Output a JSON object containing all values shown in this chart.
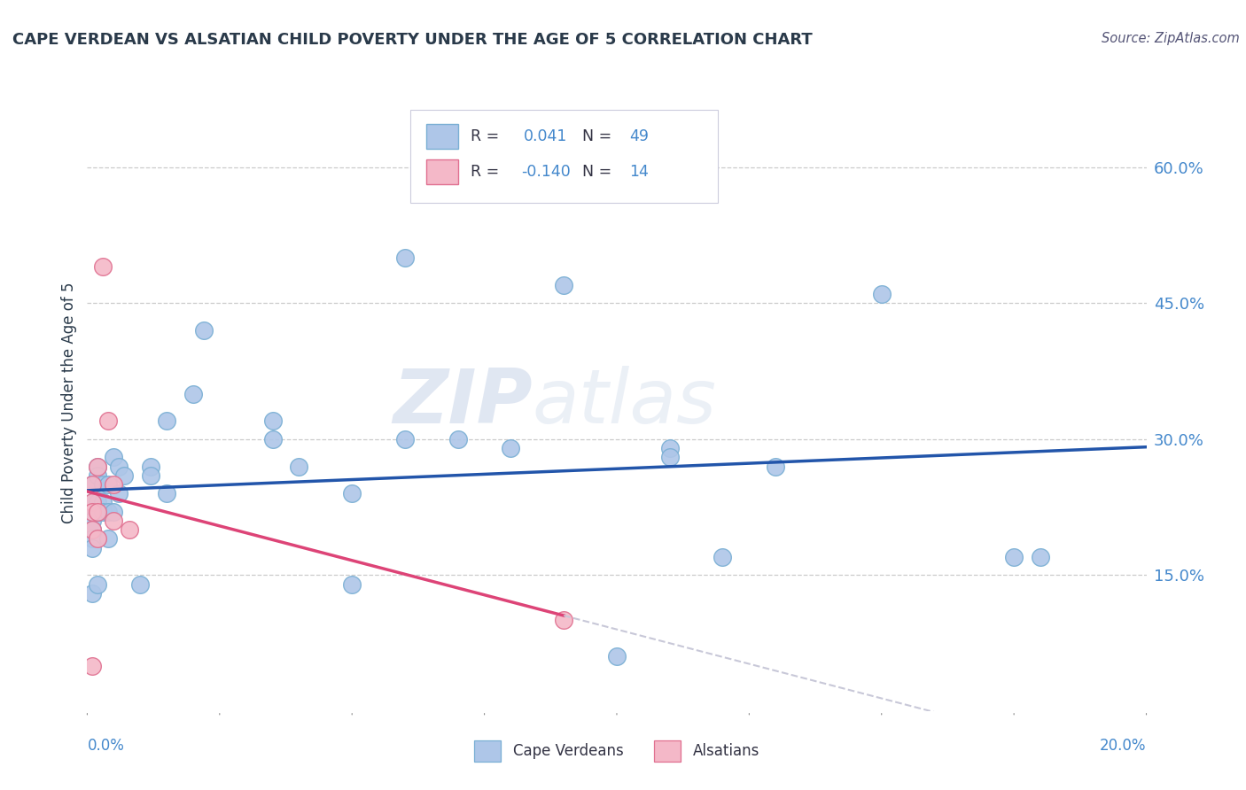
{
  "title": "CAPE VERDEAN VS ALSATIAN CHILD POVERTY UNDER THE AGE OF 5 CORRELATION CHART",
  "source": "Source: ZipAtlas.com",
  "ylabel": "Child Poverty Under the Age of 5",
  "ytick_labels": [
    "60.0%",
    "45.0%",
    "30.0%",
    "15.0%"
  ],
  "ytick_values": [
    0.6,
    0.45,
    0.3,
    0.15
  ],
  "xlim": [
    0.0,
    0.2
  ],
  "ylim": [
    0.0,
    0.68
  ],
  "watermark_1": "ZIP",
  "watermark_2": "atlas",
  "cv_color": "#aec6e8",
  "cv_edge_color": "#7aafd4",
  "als_color": "#f4b8c8",
  "als_edge_color": "#e07090",
  "trendline_cv_color": "#2255aa",
  "trendline_als_color": "#dd4477",
  "trendline_als_dash_color": "#c8c8d8",
  "grid_color": "#cccccc",
  "title_color": "#2a3a4a",
  "source_color": "#555577",
  "ylabel_color": "#2a3a4a",
  "tick_color": "#4488cc",
  "background_color": "#ffffff",
  "legend_blue_R": "0.041",
  "legend_blue_N": "49",
  "legend_pink_R": "-0.140",
  "legend_pink_N": "14",
  "bottom_legend_left": "Cape Verdeans",
  "bottom_legend_right": "Alsatians",
  "cape_verdean_x": [
    0.001,
    0.001,
    0.001,
    0.001,
    0.001,
    0.001,
    0.001,
    0.001,
    0.002,
    0.002,
    0.002,
    0.002,
    0.002,
    0.003,
    0.003,
    0.003,
    0.004,
    0.004,
    0.004,
    0.005,
    0.005,
    0.006,
    0.006,
    0.007,
    0.01,
    0.012,
    0.012,
    0.015,
    0.015,
    0.02,
    0.022,
    0.035,
    0.035,
    0.04,
    0.05,
    0.05,
    0.06,
    0.06,
    0.07,
    0.08,
    0.09,
    0.1,
    0.11,
    0.11,
    0.12,
    0.13,
    0.15,
    0.175,
    0.18
  ],
  "cape_verdean_y": [
    0.25,
    0.23,
    0.22,
    0.21,
    0.2,
    0.19,
    0.18,
    0.13,
    0.27,
    0.26,
    0.23,
    0.22,
    0.14,
    0.25,
    0.23,
    0.22,
    0.25,
    0.22,
    0.19,
    0.28,
    0.22,
    0.27,
    0.24,
    0.26,
    0.14,
    0.27,
    0.26,
    0.32,
    0.24,
    0.35,
    0.42,
    0.32,
    0.3,
    0.27,
    0.24,
    0.14,
    0.5,
    0.3,
    0.3,
    0.29,
    0.47,
    0.06,
    0.29,
    0.28,
    0.17,
    0.27,
    0.46,
    0.17,
    0.17
  ],
  "alsatian_x": [
    0.001,
    0.001,
    0.001,
    0.001,
    0.001,
    0.002,
    0.002,
    0.002,
    0.003,
    0.004,
    0.005,
    0.005,
    0.008,
    0.09
  ],
  "alsatian_y": [
    0.25,
    0.23,
    0.22,
    0.2,
    0.05,
    0.27,
    0.22,
    0.19,
    0.49,
    0.32,
    0.25,
    0.21,
    0.2,
    0.1
  ]
}
